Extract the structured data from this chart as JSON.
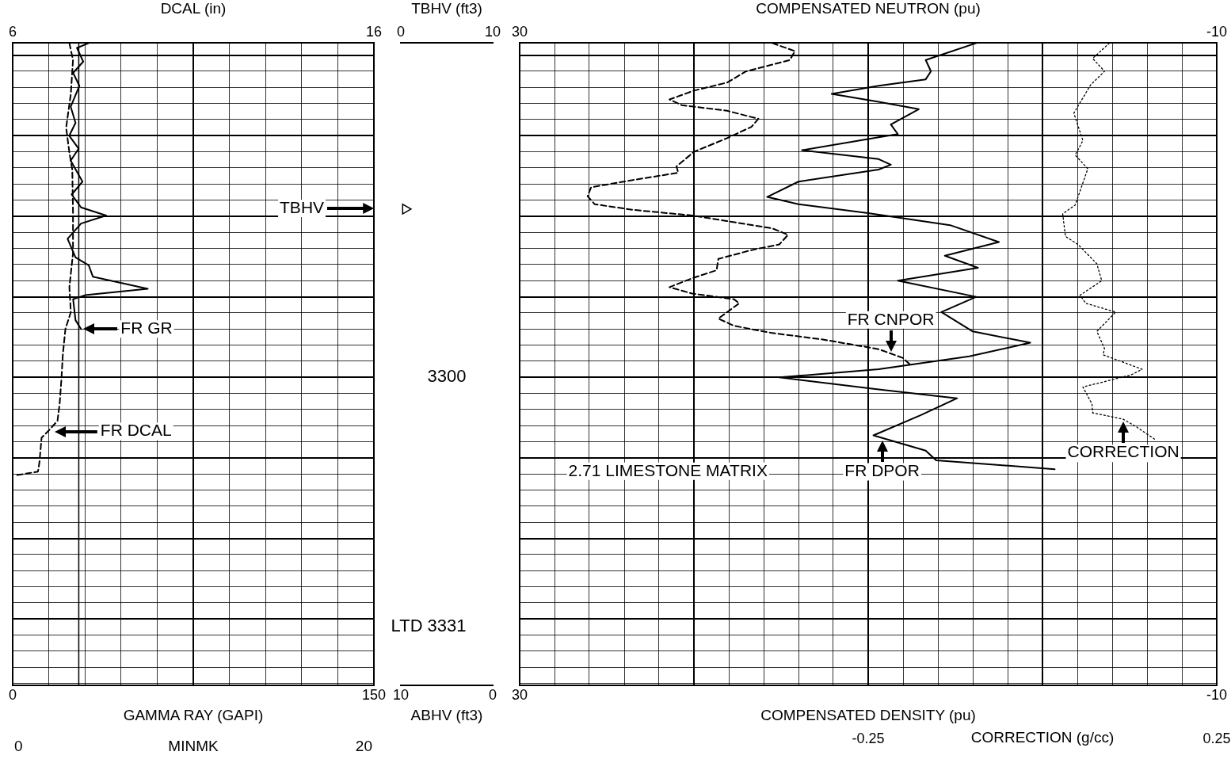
{
  "chart_data": [
    {
      "type": "line",
      "xlabel": "GAMMA RAY (GAPI)",
      "x2label": "DCAL (in)",
      "xlim": [
        0,
        150
      ],
      "xticks": [
        0,
        {
          "value": 15,
          "label": null
        },
        {
          "value": 30,
          "label": null
        },
        {
          "value": 45,
          "label": null
        },
        {
          "value": 60,
          "label": null
        },
        {
          "value": 75,
          "label": null
        },
        {
          "value": 90,
          "label": null
        },
        {
          "value": 105,
          "label": null
        },
        {
          "value": 120,
          "label": null
        },
        {
          "value": 135,
          "label": null
        },
        150
      ],
      "x2lim": [
        6,
        16
      ],
      "x2ticks": [
        6,
        16
      ],
      "ylim": [
        3338.2,
        3258.5
      ],
      "yticks": [
        {
          "value": 3260,
          "label": null
        },
        {
          "value": 3262,
          "label": null
        },
        {
          "value": 3264,
          "label": null
        },
        {
          "value": 3266,
          "label": null
        },
        {
          "value": 3268,
          "label": null
        },
        {
          "value": 3270,
          "label": null
        },
        {
          "value": 3272,
          "label": null
        },
        {
          "value": 3274,
          "label": null
        },
        {
          "value": 3276,
          "label": null
        },
        {
          "value": 3278,
          "label": null
        },
        {
          "value": 3280,
          "label": null
        },
        {
          "value": 3282,
          "label": null
        },
        {
          "value": 3284,
          "label": null
        },
        {
          "value": 3286,
          "label": null
        },
        {
          "value": 3288,
          "label": null
        },
        {
          "value": 3290,
          "label": null
        },
        {
          "value": 3292,
          "label": null
        },
        {
          "value": 3294,
          "label": null
        },
        {
          "value": 3296,
          "label": null
        },
        {
          "value": 3298,
          "label": null
        },
        {
          "value": 3300,
          "label": null
        },
        {
          "value": 3302,
          "label": null
        },
        {
          "value": 3304,
          "label": null
        },
        {
          "value": 3306,
          "label": null
        },
        {
          "value": 3308,
          "label": null
        },
        {
          "value": 3310,
          "label": null
        },
        {
          "value": 3312,
          "label": null
        },
        {
          "value": 3314,
          "label": null
        },
        {
          "value": 3316,
          "label": null
        },
        {
          "value": 3318,
          "label": null
        },
        {
          "value": 3320,
          "label": null
        },
        {
          "value": 3322,
          "label": null
        },
        {
          "value": 3324,
          "label": null
        },
        {
          "value": 3326,
          "label": null
        },
        {
          "value": 3328,
          "label": null
        },
        {
          "value": 3330,
          "label": null
        },
        {
          "value": 3332,
          "label": null
        },
        {
          "value": 3334,
          "label": null
        },
        {
          "value": 3336,
          "label": null
        },
        {
          "value": 3338,
          "label": null
        }
      ],
      "tick_labels": "x",
      "grid": true,
      "series": [
        {
          "color": "#000000",
          "line_style": "solid",
          "x": [
            31.6,
            26.7,
            29.3,
            25.1,
            27.7,
            24.1,
            26.1,
            23.5,
            27.4,
            24.1,
            29.0,
            24.5,
            28.4,
            38.8,
            28.4,
            22.8,
            26.1,
            31.6,
            33.3,
            56.1,
            30.0,
            25.1,
            26.1,
            28.4
          ],
          "values": [
            3258.5,
            3259.1,
            3260.8,
            3262.2,
            3263.8,
            3266.4,
            3268.4,
            3270.0,
            3271.6,
            3273.1,
            3275.7,
            3277.3,
            3278.9,
            3279.9,
            3280.9,
            3282.8,
            3285.1,
            3286.1,
            3287.5,
            3289.0,
            3289.8,
            3290.3,
            3292.9,
            3294.0
          ]
        },
        {
          "color": "#000000",
          "line_style": "dashed",
          "axis": "x2",
          "x": [
            7.57,
            7.67,
            7.61,
            7.48,
            7.57,
            7.65,
            7.67,
            7.67,
            7.57,
            7.61,
            7.46,
            7.39,
            7.35,
            7.3,
            7.24,
            7.02,
            6.8,
            6.74,
            6.7,
            6.04
          ],
          "values": [
            3258.5,
            3260.6,
            3264.8,
            3269.0,
            3272.1,
            3274.2,
            3279.4,
            3284.6,
            3288.8,
            3291.9,
            3294.0,
            3297.1,
            3300.2,
            3303.3,
            3305.4,
            3306.5,
            3307.5,
            3310.6,
            3311.7,
            3312.2
          ]
        }
      ],
      "ref_lines": [
        {
          "axis": "x2",
          "value": 7.83,
          "color": "#000000"
        }
      ],
      "annotations": [
        {
          "text": "FR GR",
          "x": 28.4,
          "y": 3294.0
        },
        "FR DCAL",
        "TBHV",
        "0",
        "MINMK",
        "20"
      ]
    },
    {
      "type": "line",
      "xlabel": "ABHV (ft3)",
      "x2label": "TBHV (ft3)",
      "xlim": [
        10,
        0
      ],
      "xticks": [
        10,
        0
      ],
      "x2lim": [
        0,
        10
      ],
      "x2ticks": [
        0,
        10
      ],
      "ylim": [
        3338.2,
        3258.5
      ],
      "yticks": [
        3300,
        3331
      ],
      "grid": false,
      "marker": "triangle",
      "annotations": [
        "LTD"
      ],
      "series": [
        {
          "type": "scatter",
          "axis": "x2",
          "color": "#000000",
          "x": [
            0.5
          ],
          "values": [
            3279.1
          ]
        }
      ]
    },
    {
      "type": "line",
      "xlabel": "COMPENSATED DENSITY (pu)",
      "x2label": "COMPENSATED NEUTRON (pu)",
      "xlim": [
        30,
        -10
      ],
      "xticks": [
        30,
        {
          "value": 28,
          "label": null
        },
        {
          "value": 26,
          "label": null
        },
        {
          "value": 24,
          "label": null
        },
        {
          "value": 22,
          "label": null
        },
        {
          "value": 20,
          "label": null
        },
        {
          "value": 18,
          "label": null
        },
        {
          "value": 16,
          "label": null
        },
        {
          "value": 14,
          "label": null
        },
        {
          "value": 12,
          "label": null
        },
        {
          "value": 10,
          "label": null
        },
        {
          "value": 8,
          "label": null
        },
        {
          "value": 6,
          "label": null
        },
        {
          "value": 4,
          "label": null
        },
        {
          "value": 2,
          "label": null
        },
        {
          "value": 0,
          "label": null
        },
        {
          "value": -2,
          "label": null
        },
        {
          "value": -4,
          "label": null
        },
        {
          "value": -6,
          "label": null
        },
        {
          "value": -8,
          "label": null
        },
        -10
      ],
      "x2lim": [
        30,
        -10
      ],
      "x2ticks": [
        30,
        -10
      ],
      "ylim": [
        3338.2,
        3258.5
      ],
      "yticks": [
        {
          "value": 3260,
          "label": null
        },
        {
          "value": 3262,
          "label": null
        },
        {
          "value": 3264,
          "label": null
        },
        {
          "value": 3266,
          "label": null
        },
        {
          "value": 3268,
          "label": null
        },
        {
          "value": 3270,
          "label": null
        },
        {
          "value": 3272,
          "label": null
        },
        {
          "value": 3274,
          "label": null
        },
        {
          "value": 3276,
          "label": null
        },
        {
          "value": 3278,
          "label": null
        },
        {
          "value": 3280,
          "label": null
        },
        {
          "value": 3282,
          "label": null
        },
        {
          "value": 3284,
          "label": null
        },
        {
          "value": 3286,
          "label": null
        },
        {
          "value": 3288,
          "label": null
        },
        {
          "value": 3290,
          "label": null
        },
        {
          "value": 3292,
          "label": null
        },
        {
          "value": 3294,
          "label": null
        },
        {
          "value": 3296,
          "label": null
        },
        {
          "value": 3298,
          "label": null
        },
        {
          "value": 3300,
          "label": null
        },
        {
          "value": 3302,
          "label": null
        },
        {
          "value": 3304,
          "label": null
        },
        {
          "value": 3306,
          "label": null
        },
        {
          "value": 3308,
          "label": null
        },
        {
          "value": 3310,
          "label": null
        },
        {
          "value": 3312,
          "label": null
        },
        {
          "value": 3314,
          "label": null
        },
        {
          "value": 3316,
          "label": null
        },
        {
          "value": 3318,
          "label": null
        },
        {
          "value": 3320,
          "label": null
        },
        {
          "value": 3322,
          "label": null
        },
        {
          "value": 3324,
          "label": null
        },
        {
          "value": 3326,
          "label": null
        },
        {
          "value": 3328,
          "label": null
        },
        {
          "value": 3330,
          "label": null
        },
        {
          "value": 3332,
          "label": null
        },
        {
          "value": 3334,
          "label": null
        },
        {
          "value": 3336,
          "label": null
        },
        {
          "value": 3338,
          "label": null
        }
      ],
      "tick_labels": "x",
      "grid": true,
      "series": [
        {
          "color": "#000000",
          "line_style": "solid",
          "x": [
            3.8,
            6.7,
            6.4,
            6.7,
            9.4,
            12.1,
            9.4,
            7.1,
            8.7,
            8.3,
            9.4,
            13.8,
            9.4,
            8.7,
            9.4,
            14.0,
            15.8,
            14.0,
            10.0,
            5.3,
            2.5,
            5.6,
            3.7,
            8.3,
            3.8,
            5.8,
            4.0,
            0.7,
            4.2,
            9.4,
            15.1,
            9.4,
            4.9,
            7.0,
            9.7,
            6.7,
            6.1,
            -0.7
          ],
          "values": [
            3258.5,
            3260.6,
            3262.0,
            3263.0,
            3263.8,
            3264.8,
            3265.8,
            3266.7,
            3268.6,
            3269.8,
            3270.2,
            3271.8,
            3272.9,
            3273.6,
            3274.2,
            3275.7,
            3277.6,
            3278.5,
            3279.6,
            3281.1,
            3283.2,
            3284.9,
            3286.4,
            3288.0,
            3290.0,
            3291.9,
            3294.3,
            3295.7,
            3297.4,
            3299.0,
            3300.0,
            3301.5,
            3302.6,
            3304.7,
            3307.2,
            3309.1,
            3310.3,
            3311.4
          ]
        },
        {
          "color": "#000000",
          "line_style": "dashed",
          "axis": "x2",
          "x": [
            15.5,
            14.2,
            14.5,
            17.0,
            18.1,
            20.0,
            21.4,
            20.7,
            18.1,
            16.3,
            16.7,
            18.1,
            20.0,
            21.0,
            20.9,
            23.5,
            25.9,
            26.1,
            25.7,
            23.5,
            20.1,
            18.1,
            15.5,
            14.6,
            15.1,
            16.7,
            18.6,
            18.7,
            20.1,
            21.4,
            20.1,
            17.7,
            17.4,
            18.6,
            17.7,
            15.5,
            12.6,
            9.4,
            8.0,
            7.5
          ],
          "values": [
            3258.5,
            3259.5,
            3260.6,
            3262.0,
            3263.4,
            3264.4,
            3265.5,
            3266.2,
            3266.9,
            3267.9,
            3268.9,
            3270.3,
            3272.0,
            3273.8,
            3274.6,
            3275.5,
            3276.4,
            3277.5,
            3278.5,
            3279.2,
            3279.9,
            3280.6,
            3281.5,
            3282.3,
            3283.5,
            3284.2,
            3285.3,
            3286.7,
            3287.7,
            3288.8,
            3289.6,
            3290.3,
            3290.8,
            3292.7,
            3293.6,
            3294.5,
            3295.3,
            3296.5,
            3297.6,
            3298.6
          ]
        }
      ],
      "annotations": [
        "2.71 LIMESTONE MATRIX",
        {
          "text": "FR CNPOR",
          "x": 8.7,
          "y": 3297.1
        },
        {
          "text": "FR DPOR",
          "x": 9.2,
          "y": 3307.5
        }
      ]
    },
    {
      "type": "line",
      "xlabel": "CORRECTION (g/cc)",
      "xlim": [
        -0.25,
        0.25
      ],
      "xticks": [
        -0.25,
        0.25
      ],
      "ylim": [
        3338.2,
        3258.5
      ],
      "tick_labels": "x",
      "series": [
        {
          "color": "#000000",
          "line_style": "dotted",
          "x": [
            0.096,
            0.072,
            0.089,
            0.069,
            0.045,
            0.058,
            0.047,
            0.065,
            0.047,
            0.029,
            0.033,
            0.051,
            0.078,
            0.085,
            0.054,
            0.062,
            0.105,
            0.078,
            0.089,
            0.087,
            0.143,
            0.127,
            0.058,
            0.071,
            0.072,
            0.116,
            0.134,
            0.163
          ],
          "values": [
            3258.5,
            3260.4,
            3262.0,
            3263.7,
            3267.2,
            3270.6,
            3272.4,
            3274.1,
            3278.6,
            3279.7,
            3282.5,
            3283.5,
            3285.9,
            3288.0,
            3289.8,
            3290.8,
            3291.9,
            3294.3,
            3296.4,
            3297.2,
            3299.0,
            3299.7,
            3301.2,
            3303.3,
            3304.4,
            3305.2,
            3306.1,
            3307.8
          ]
        }
      ],
      "annotations": [
        {
          "text": "CORRECTION",
          "x": 0.116,
          "y": 3305.2
        }
      ]
    }
  ]
}
